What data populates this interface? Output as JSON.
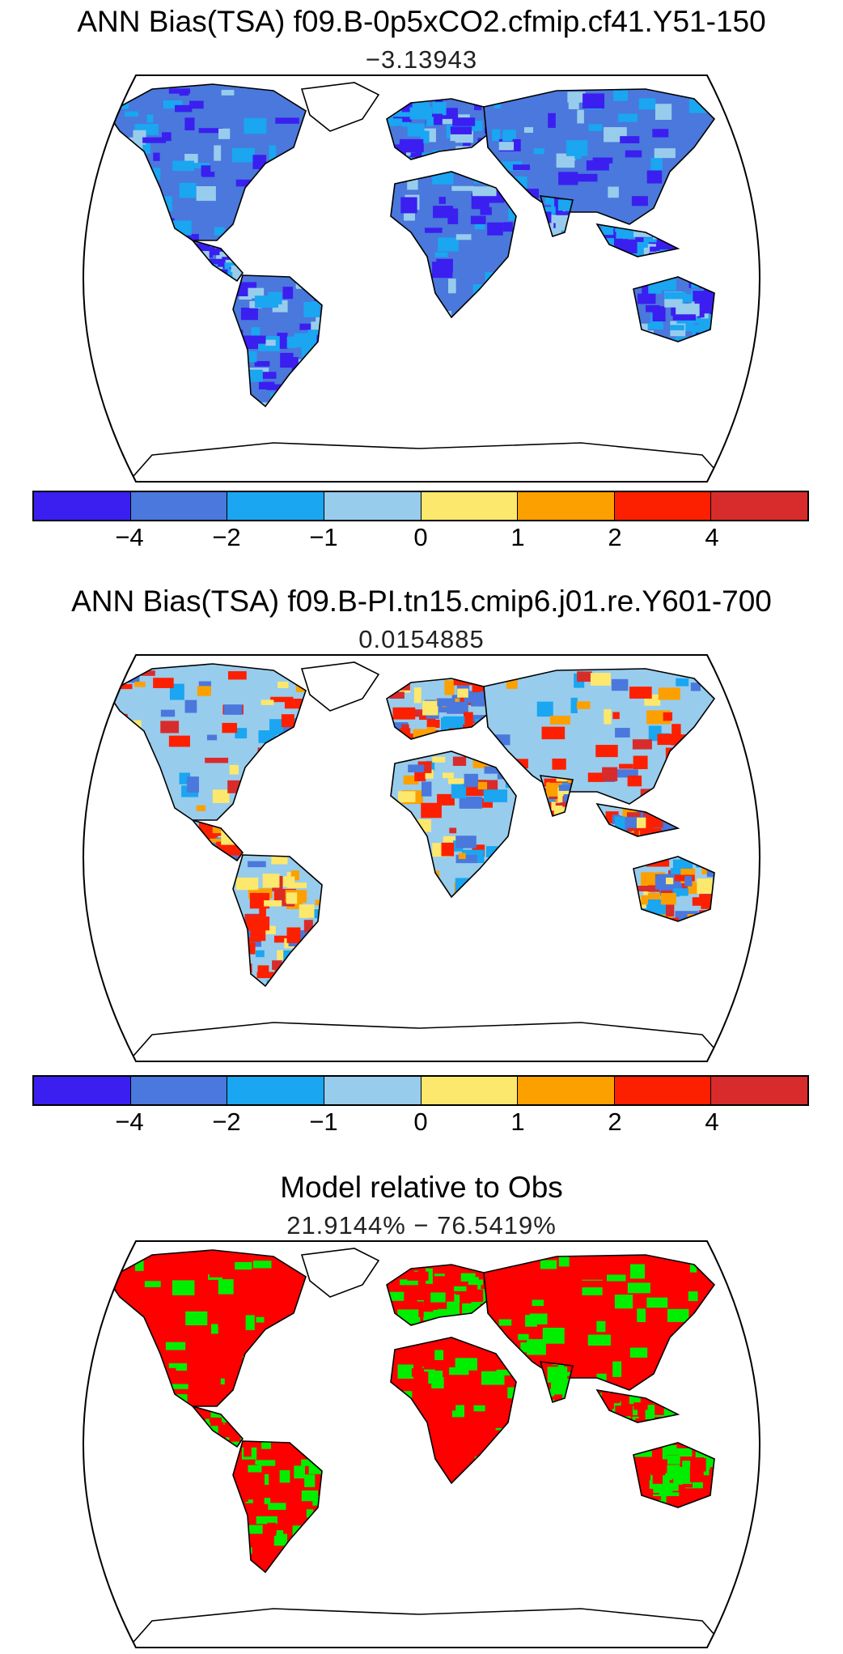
{
  "panels": [
    {
      "title": "ANN Bias(TSA) f09.B-0p5xCO2.cfmip.cf41.Y51-150",
      "subtitle": "−3.13943",
      "scheme": "bias_cold"
    },
    {
      "title": "ANN Bias(TSA) f09.B-PI.tn15.cmip6.j01.re.Y601-700",
      "subtitle": "0.0154885",
      "scheme": "bias_mixed"
    },
    {
      "title": "Model relative to Obs",
      "subtitle": "21.9144% − 76.5419%",
      "scheme": "relative"
    }
  ],
  "colorbar": {
    "colors": [
      "#3a1ff0",
      "#4a78dc",
      "#1aa6f0",
      "#98ccec",
      "#fce86c",
      "#fca000",
      "#fc2000",
      "#d82c2c"
    ],
    "tick_labels": [
      "−4",
      "−2",
      "−1",
      "0",
      "1",
      "2",
      "4"
    ]
  },
  "relative_colors": {
    "model_above": "#ff0000",
    "model_below": "#00ee00"
  }
}
